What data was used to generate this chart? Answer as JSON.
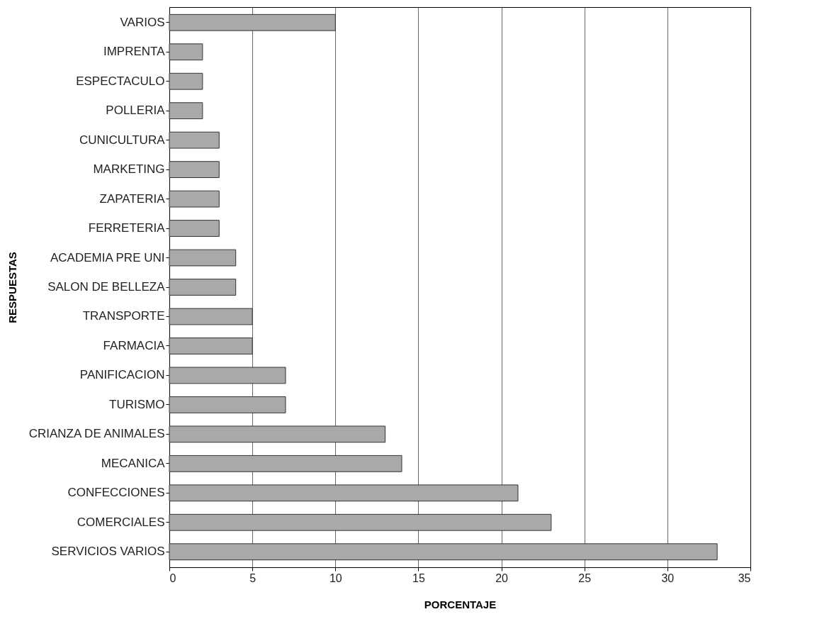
{
  "chart_data": {
    "type": "bar",
    "orientation": "horizontal",
    "xlabel": "PORCENTAJE",
    "ylabel": "RESPUESTAS",
    "categories": [
      "VARIOS",
      "IMPRENTA",
      "ESPECTACULO",
      "POLLERIA",
      "CUNICULTURA",
      "MARKETING",
      "ZAPATERIA",
      "FERRETERIA",
      "ACADEMIA PRE UNI",
      "SALON DE BELLEZA",
      "TRANSPORTE",
      "FARMACIA",
      "PANIFICACION",
      "TURISMO",
      "CRIANZA DE ANIMALES",
      "MECANICA",
      "CONFECCIONES",
      "COMERCIALES",
      "SERVICIOS VARIOS"
    ],
    "values": [
      10,
      2,
      2,
      2,
      3,
      3,
      3,
      3,
      4,
      4,
      5,
      5,
      7,
      7,
      13,
      14,
      21,
      23,
      33
    ],
    "color": "#a9a9a9",
    "xlim": [
      0,
      35
    ],
    "xticks": [
      0,
      5,
      10,
      15,
      20,
      25,
      30,
      35
    ],
    "grid": "x"
  }
}
